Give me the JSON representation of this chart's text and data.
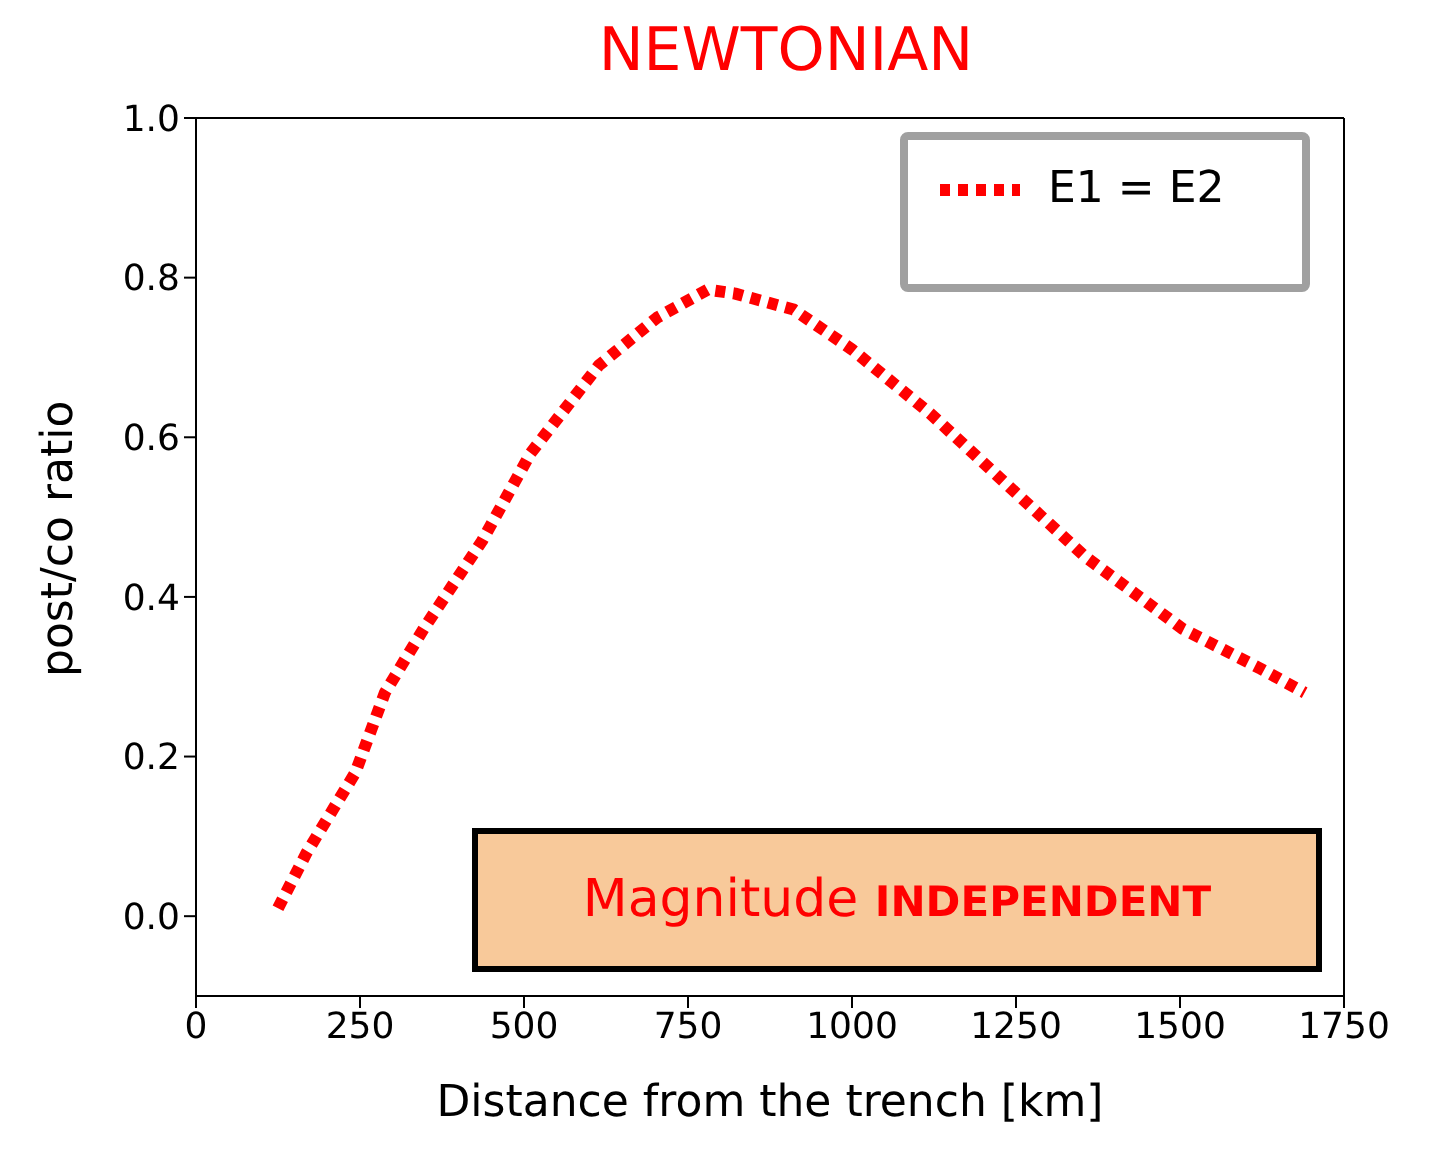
{
  "chart_data": {
    "type": "line",
    "title": "NEWTONIAN",
    "xlabel": "Distance from the trench [km]",
    "ylabel": "post/co ratio",
    "x": [
      125,
      169,
      243,
      288,
      347,
      436,
      510,
      614,
      703,
      780,
      822,
      911,
      1000,
      1119,
      1237,
      1356,
      1504,
      1623,
      1690
    ],
    "series": [
      {
        "name": "E1 = E2",
        "color": "#ff0000",
        "values": [
          0.01,
          0.08,
          0.18,
          0.28,
          0.36,
          0.47,
          0.58,
          0.69,
          0.75,
          0.785,
          0.78,
          0.76,
          0.71,
          0.63,
          0.54,
          0.45,
          0.36,
          0.31,
          0.28
        ]
      }
    ],
    "xlim": [
      0,
      1750
    ],
    "xticks": [
      0,
      250,
      500,
      750,
      1000,
      1250,
      1500,
      1750
    ],
    "ylim": [
      -0.1,
      1.0
    ],
    "yticks": [
      {
        "value": 0,
        "label": "0.0"
      },
      0.2,
      0.4,
      0.6,
      0.8,
      {
        "value": 1,
        "label": "1.0"
      }
    ],
    "legend": "top right",
    "line_style": "dotted",
    "marker": "none",
    "grid": false,
    "annotations": [
      "Magnitude INDEPENDENT"
    ]
  }
}
